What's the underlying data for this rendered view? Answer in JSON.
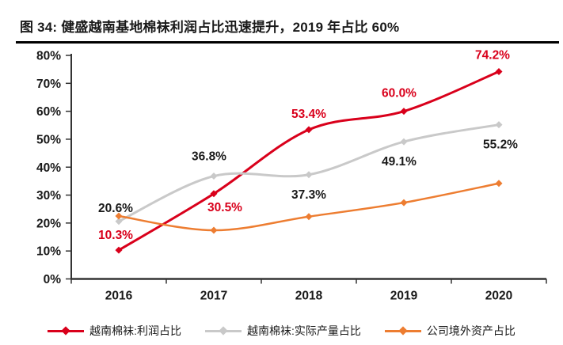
{
  "figure": {
    "title": "图 34: 健盛越南基地棉袜利润占比迅速提升，2019 年占比 60%",
    "title_color": "#1a1a1a",
    "rule_color": "#000000"
  },
  "chart_data": {
    "type": "line",
    "smooth": true,
    "grid": false,
    "legend_position": "bottom",
    "title": "健盛越南基地棉袜利润占比迅速提升，2019 年占比 60%",
    "xlabel": "",
    "ylabel": "",
    "categories": [
      "2016",
      "2017",
      "2018",
      "2019",
      "2020"
    ],
    "ylim": [
      0,
      80
    ],
    "ytick_step": 10,
    "ytick_labels": [
      "0%",
      "10%",
      "20%",
      "30%",
      "40%",
      "50%",
      "60%",
      "70%",
      "80%"
    ],
    "axis_color": "#333333",
    "tick_label_color": "#1a1a1a",
    "series": [
      {
        "name": "越南棉袜:利润占比",
        "color": "#d9001b",
        "label_color": "#d9001b",
        "values": [
          10.3,
          30.5,
          53.4,
          60.0,
          74.2
        ],
        "point_labels": [
          {
            "text": "10.3%",
            "dx": -4,
            "dy": -14
          },
          {
            "text": "30.5%",
            "dx": 14,
            "dy": 22
          },
          {
            "text": "53.4%",
            "dx": 0,
            "dy": -15
          },
          {
            "text": "60.0%",
            "dx": -6,
            "dy": -18
          },
          {
            "text": "74.2%",
            "dx": -8,
            "dy": -16
          }
        ]
      },
      {
        "name": "越南棉袜:实际产量占比",
        "color": "#c9c9c9",
        "label_color": "#1a1a1a",
        "values": [
          20.6,
          36.8,
          37.3,
          49.1,
          55.2
        ],
        "point_labels": [
          {
            "text": "20.6%",
            "dx": -4,
            "dy": -12
          },
          {
            "text": "36.8%",
            "dx": -6,
            "dy": -20
          },
          {
            "text": "37.3%",
            "dx": 0,
            "dy": 30
          },
          {
            "text": "49.1%",
            "dx": -6,
            "dy": 30
          },
          {
            "text": "55.2%",
            "dx": 2,
            "dy": 30
          }
        ]
      },
      {
        "name": "公司境外资产占比",
        "color": "#ed7d31",
        "label_color": null,
        "values": [
          22.5,
          17.4,
          22.3,
          27.3,
          34.2
        ],
        "point_labels": null
      }
    ]
  }
}
